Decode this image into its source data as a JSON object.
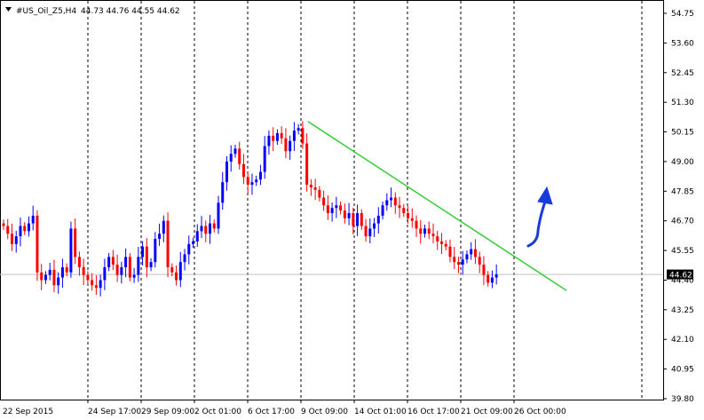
{
  "header": {
    "symbol": "#US_Oil_Z5,H4",
    "ohlc": "44.73 44.76 44.55 44.62"
  },
  "chart_data": {
    "type": "candlestick",
    "title": "#US_Oil_Z5,H4",
    "ohlc_text": "44.73 44.76 44.55 44.62",
    "current_price": 44.62,
    "current_price_label": "44.62",
    "ylim": [
      39.8,
      55.3
    ],
    "y_ticks": [
      "54.75",
      "53.60",
      "52.45",
      "51.30",
      "50.15",
      "49.00",
      "47.85",
      "46.70",
      "45.55",
      "44.40",
      "43.25",
      "42.10",
      "40.95",
      "39.80"
    ],
    "x_ticks": [
      "22 Sep 2015",
      "24 Sep 17:00",
      "29 Sep 09:00",
      "2 Oct 01:00",
      "6 Oct 17:00",
      "9 Oct 09:00",
      "14 Oct 01:00",
      "16 Oct 17:00",
      "21 Oct 09:00",
      "26 Oct 00:00"
    ],
    "grid": "vertical dashed",
    "colors": {
      "bull": "#0000ff",
      "bear": "#ff0000",
      "trendline": "#33cc33",
      "arrow": "#1a3bdc",
      "grid": "#000000",
      "price_line": "#c0c0c0"
    },
    "closes": [
      46.5,
      46.2,
      45.8,
      46.1,
      46.5,
      46.3,
      46.6,
      46.9,
      44.7,
      44.4,
      44.6,
      44.8,
      44.2,
      44.5,
      44.9,
      44.7,
      46.4,
      45.3,
      44.9,
      44.6,
      44.4,
      44.2,
      44.1,
      44.4,
      44.9,
      45.3,
      45.0,
      44.6,
      44.9,
      45.3,
      44.5,
      44.6,
      45.3,
      45.7,
      44.9,
      45.1,
      46.0,
      46.2,
      46.7,
      44.9,
      44.7,
      44.4,
      45.1,
      45.4,
      45.8,
      45.9,
      46.3,
      46.5,
      46.2,
      46.6,
      46.4,
      47.4,
      48.2,
      49.0,
      49.3,
      49.5,
      48.9,
      48.4,
      48.1,
      48.2,
      48.3,
      48.6,
      49.6,
      50.0,
      49.8,
      50.1,
      49.9,
      49.4,
      49.8,
      50.2,
      50.3,
      49.7,
      48.1,
      48.0,
      47.9,
      47.6,
      47.3,
      47.0,
      47.2,
      47.3,
      47.1,
      46.8,
      47.0,
      46.5,
      47.0,
      46.5,
      46.1,
      46.4,
      46.6,
      46.9,
      47.3,
      47.5,
      47.6,
      47.3,
      47.2,
      47.0,
      46.8,
      46.7,
      46.4,
      46.2,
      46.4,
      46.2,
      46.1,
      45.9,
      45.8,
      45.7,
      45.3,
      45.1,
      45.0,
      45.2,
      45.4,
      45.6,
      45.3,
      45.0,
      44.6,
      44.3,
      44.5,
      44.62
    ],
    "trendline": {
      "from": [
        50.55,
        "9 Oct 09:00"
      ],
      "to": [
        44.0,
        "26 Oct 00:00"
      ]
    },
    "annotation": "up-arrow"
  }
}
